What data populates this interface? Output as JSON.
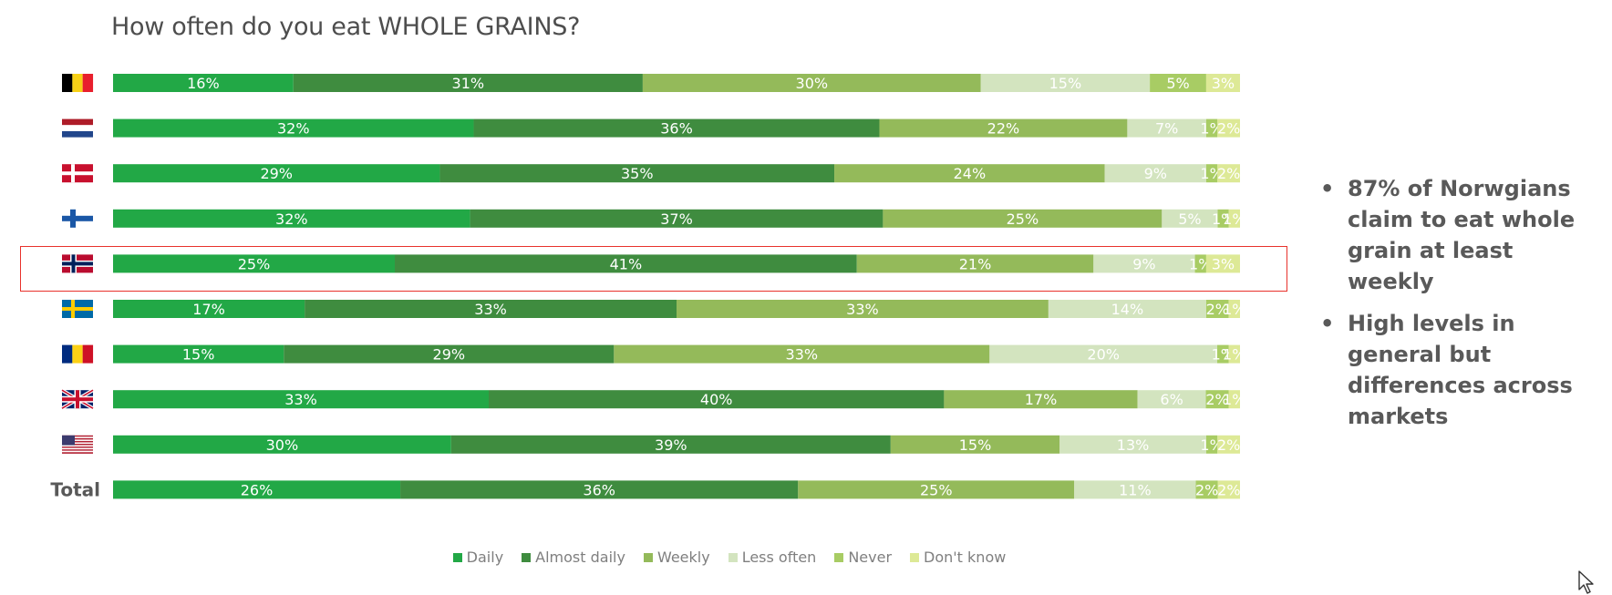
{
  "title": "How often do you eat WHOLE GRAINS?",
  "highlighted_row": "Norway",
  "bullets": [
    "87% of Norwgians claim to eat whole grain at least weekly",
    "High levels in general but differences across markets"
  ],
  "chart_data": {
    "type": "bar",
    "orientation": "horizontal",
    "stacked": true,
    "percent_stacked": true,
    "categories": [
      "Belgium",
      "Netherlands",
      "Denmark",
      "Finland",
      "Norway",
      "Sweden",
      "Romania",
      "United Kingdom",
      "United States",
      "Total"
    ],
    "category_labels": [
      "",
      "",
      "",
      "",
      "",
      "",
      "",
      "",
      "",
      "Total"
    ],
    "series": [
      {
        "name": "Daily",
        "color": "#22a846",
        "values": [
          16,
          32,
          29,
          32,
          25,
          17,
          15,
          33,
          30,
          26
        ],
        "labels": [
          "16%",
          "32%",
          "29%",
          "32%",
          "25%",
          "17%",
          "15%",
          "33%",
          "30%",
          "26%"
        ]
      },
      {
        "name": "Almost daily",
        "color": "#3f8c3f",
        "values": [
          31,
          36,
          35,
          37,
          41,
          33,
          29,
          40,
          39,
          36
        ],
        "labels": [
          "31%",
          "36%",
          "35%",
          "37%",
          "41%",
          "33%",
          "29%",
          "40%",
          "39%",
          "36%"
        ]
      },
      {
        "name": "Weekly",
        "color": "#94ba5a",
        "values": [
          30,
          22,
          24,
          25,
          21,
          33,
          33,
          17,
          15,
          25
        ],
        "labels": [
          "30%",
          "22%",
          "24%",
          "25%",
          "21%",
          "33%",
          "33%",
          "17%",
          "15%",
          "25%"
        ]
      },
      {
        "name": "Less often",
        "color": "#d3e4bf",
        "values": [
          15,
          7,
          9,
          5,
          9,
          14,
          20,
          6,
          13,
          11
        ],
        "labels": [
          "15%",
          "7%",
          "9%",
          "5%",
          "9%",
          "14%",
          "20%",
          "6%",
          "13%",
          "11%"
        ]
      },
      {
        "name": "Never",
        "color": "#a8cc64",
        "values": [
          5,
          1,
          1,
          1,
          1,
          2,
          1,
          2,
          1,
          2
        ],
        "labels": [
          "5%",
          "1%",
          "1%",
          "1%",
          "1%",
          "2%",
          "1%",
          "2%",
          "1%",
          "2%"
        ]
      },
      {
        "name": "Don't know",
        "color": "#dde996",
        "values": [
          3,
          2,
          2,
          1,
          3,
          1,
          1,
          1,
          2,
          2
        ],
        "labels": [
          "3%",
          "2%",
          "2%",
          "1%",
          "3%",
          "1%",
          "1%",
          "1%",
          "2%",
          "2%"
        ]
      }
    ],
    "xlim": [
      0,
      100
    ],
    "grid": false,
    "legend_position": "bottom"
  }
}
